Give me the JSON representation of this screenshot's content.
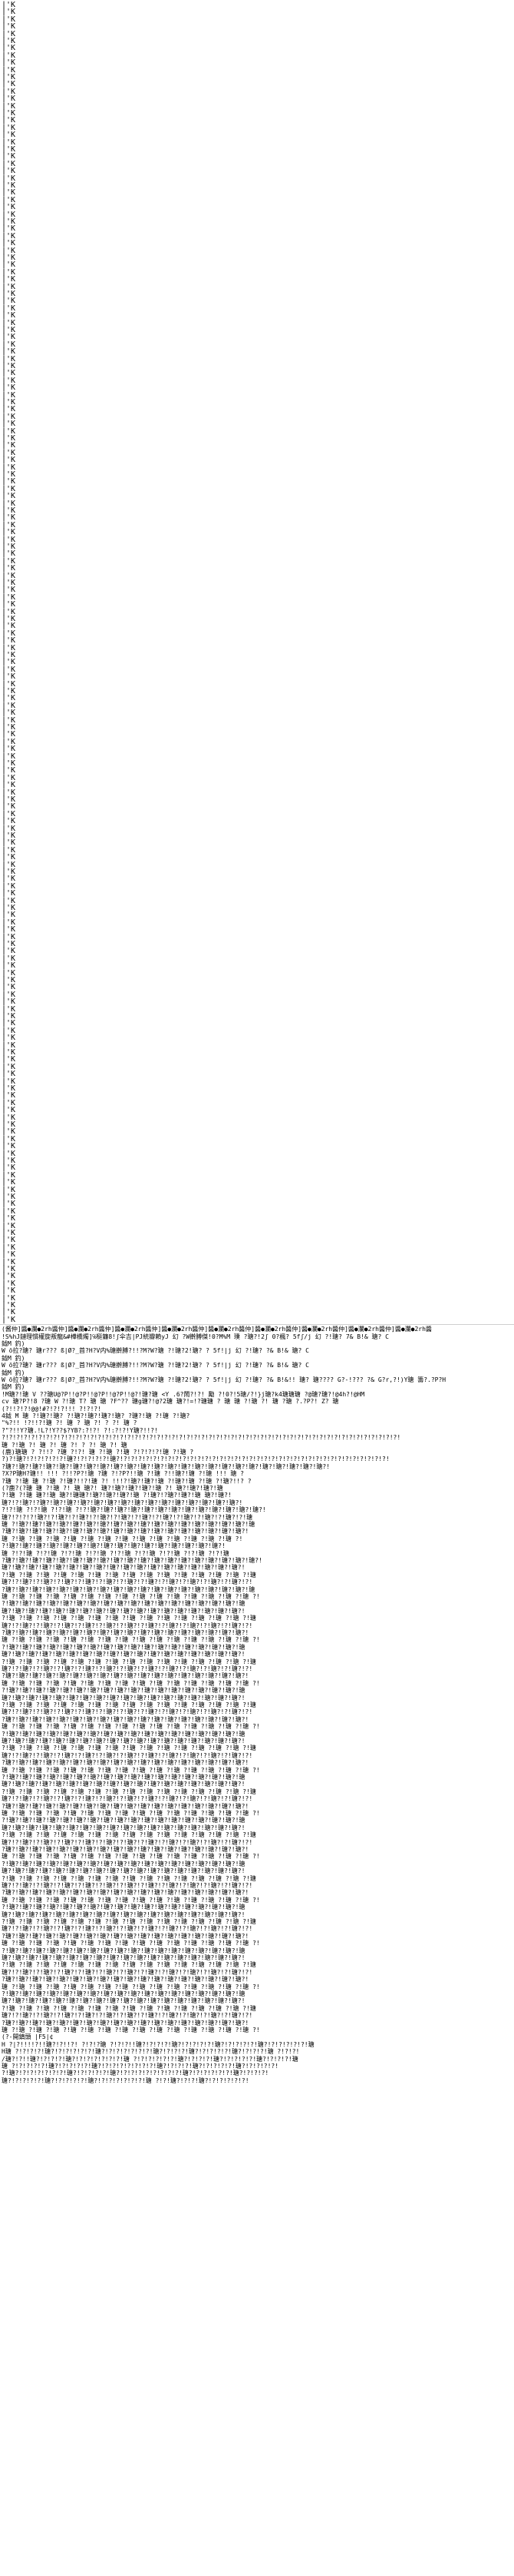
{
  "document": {
    "repeated_marker": "|'K",
    "marker_lines_count": 183,
    "blocks": [
      {
        "text": "(酱仲]醬●瀾●2rh醬仲]醬●瀾●2rh醬仲]醬●瀾●2rh醬仲]醬●瀾●2rh醬仲]醬●瀾●2rh醬仲]醬●瀾●2rh醬仲]醬●瀾●2rh醬仲]醬●瀾●2rh醬仲]醬●瀾●2rh醬"
      },
      {
        "text": "!S%hJ鏈理慣權旋叛龍&#樺橋燭]℅梃鐮8!ʃ伞吉|PJ統瓣賴yJ 幻 ?W擀膊傑!0?M%M 璞 ?瑭?!2ʃ 0?楓? 5fʃ/j 幻 ?!瑭? 7&  B!& 瑭? C"
      },
      {
        "text": "鉞M  釣)"
      },
      {
        "text": "W  ö拉?瑭?  瑭r???  ß|Ø?_首?H?V内%瑭擀膊?!!?M?W?瑭 ?!瑭?2!瑭? ? 5f!|j 幻 ?!瑭?  ?&  B!& 瑭? C"
      },
      {
        "text": "鉞M  釣)"
      },
      {
        "text": "W  ö拉?瑭?  瑭r???  ß|Ø?_首?H?V内%瑭擀膊?!!?M?W?瑭 ?!瑭?2!瑭? ? 5f!|j 幻 ?!瑭?  ?&  B!& 瑭? C"
      },
      {
        "text": "鉞M  釣)"
      },
      {
        "text": "W  ö拉?瑭?  瑭r???  ß|Ø?_首?H?V内%瑭擀膊?!!?M?W?瑭 ?!瑭?2!瑭? ? 5f!|j 幻 ?!瑭?  ?&  B!&!!  瑭? 瑭????  G?-!???  ?&   G?r,?!)Y瑭  籌?.?P?H"
      },
      {
        "text": "鉞M  釣)"
      },
      {
        "text": "!M瑭?!瑭 V  ??瑭U@?P!!@?P!!@?P!!@?P!!@?!瑭?瑭 <Y    .6?鬧?!?! 勵 ?!0?!5瑭/?!}j瑭?k4瑭瑭瑭 ?@瑭?瑭?!@4h?!@HM"
      },
      {
        "text": "cv 瑭?P?!8 ?瑭 W ?!瑭  T? 瑭 瑭  ?F^??  瑭g瑭?!@?2瑭 瑭?!=!?瑭瑭 ? 瑭 瑭 ?!瑭 ?! 瑭 ?瑭 ?.?P?!  Z? 瑭"
      },
      {
        "text": "(?!!?!?!@@!#?!?!?!!! ?!?!?!"
      },
      {
        "text": "4鉞 M 瑭 ?!瑭?!瑭? ?!瑭?!瑭?!瑭?!瑭? ?瑭?!瑭 ?!瑭 ?!瑭?"
      },
      {
        "text": "\"%?!! !?!!?!瑭 ?!  瑭 ?  瑭 ?!  ?  ?!  瑭 ?"
      },
      {
        "text": "?\"?!!Y?瑭.!L?!Y??$?YB?:?!?! ?!:?!?!Y瑭?!!?!"
      },
      {
        "text": "?!?!?!?!?!?!?!?!?!?!?!?!?!?!?!?!?!?!?!?!?!?!?!?!?!?!?!?!?!?!?!?!?!?!?!?!?!?!?!?!?!?!?!?!?!?!?!?!?!?!?!?!?!?!"
      },
      {
        "text": "瑭 ?!瑭 ?!  瑭 ?! 瑭 ?!  ?  ?!  瑭 ?!  瑭"
      },
      {
        "text": "(鹿)瑭瑭 ?  ?!!?  ?瑭 ?!?!  瑭 ?!瑭 ?!瑭 ?!?!?!?!瑭 ?!瑭 ?"
      },
      {
        "text": "?)?!瑭?!?!?!?!?!?!瑭?!?!?!?!?!瑭?!?!?!?!?!?!?!?!?!?!?!?!?!?!?!?!?!?!?!?!?!?!?!?!?!?!?!?!?!?!?!?!?!?!?!?!?!"
      },
      {
        "text": "?瑭?!瑭?!瑭?!瑭?!瑭?!瑭?!瑭?!瑭?!瑭?!瑭?!瑭?!瑭?!瑭?!瑭?!瑭?!瑭?!瑭?!瑭?!瑭?!瑭?!瑭?!瑭?!瑭?!瑭?!"
      },
      {
        "text": "?X?P瑭H?瑭!! !!!  ?!!?P?!瑭 ?瑭 ?!?P?!!瑭 ?!瑭 ?!!瑭?!瑭 ?!瑭 !!!  瑭 ?"
      },
      {
        "text": "?瑭 ?!瑭 瑭  ?!瑭 ?!瑭?!!?!瑭 ?!  !!!?!瑭?!瑭?!瑭 ?!瑭?!瑭 ?!瑭 ?!瑭?!!? ?"
      },
      {
        "text": "(?鹿?(?瑭 瑭 ?!瑭 ?!  瑭 瑭?! 瑭?!瑭?!瑭?!瑭?!瑭 ?!  瑭?!瑭?!瑭?!瑭"
      },
      {
        "text": "?!瑭 ?!瑭 瑭?!瑭 瑭?!瑭瑭?!瑭?!瑭?!瑭?!瑭 ?!瑭?!?瑭?!瑭?!瑭 瑭?!瑭?!"
      },
      {
        "text": "瑭?!?!瑭?!?瑭?!瑭?!瑭?!瑭?!瑭?!瑭?!瑭?!瑭?!瑭?!瑭?!瑭?!瑭?!瑭?!瑭?!瑭?!"
      },
      {
        "text": "?!?!瑭 ?!?!瑭 ?!?!瑭 ?!?!瑭?!瑭?!瑭?!瑭?!瑭?!瑭?!瑭?!瑭?!瑭?!瑭?!瑭?!瑭?!瑭?!"
      },
      {
        "text": "瑭?!?!?!?!瑭?!?!瑭?!?!瑭?!?!瑭?!?!瑭?!?!瑭?!?!瑭?!?!瑭?!?!瑭?!?!瑭?!?!瑭"
      },
      {
        "text": "瑭 ?!瑭?!瑭?!瑭?!瑭?!瑭?!瑭?!瑭?!瑭?!瑭?!瑭?!瑭?!瑭?!瑭?!瑭?!瑭?!瑭?!瑭?!瑭"
      },
      {
        "text": "?瑭?!瑭?!瑭?!瑭?!瑭?!瑭?!瑭?!瑭?!瑭?!瑭?!瑭?!瑭?!瑭?!瑭?!瑭?!瑭?!瑭?!瑭?!"
      },
      {
        "text": "瑭 ?!瑭 ?!瑭 ?!瑭 ?!瑭 ?!瑭 ?!瑭 ?!瑭 ?!瑭 ?!瑭 ?!瑭 ?!瑭 ?!瑭 ?!瑭 ?!"
      },
      {
        "text": "?!瑭?!瑭?!瑭?!瑭?!瑭?!瑭?!瑭?!瑭?!瑭?!瑭?!瑭?!瑭?!瑭?!瑭?!瑭?!瑭?!"
      },
      {
        "text": "瑭 ?!?!瑭 ?!?!瑭 ?!?!瑭 ?!?!瑭 ?!?!瑭 ?!?!瑭 ?!?!瑭 ?!?!瑭 ?!?!瑭"
      },
      {
        "text": "?瑭?!瑭?!瑭?!瑭?!瑭?!瑭?!瑭?!瑭?!瑭?!瑭?!瑭?!瑭?!瑭?!瑭?!瑭?!瑭?!瑭?!瑭?!瑭?!"
      },
      {
        "text": "瑭?!瑭?!瑭?!瑭?!瑭?!瑭?!瑭?!瑭?!瑭?!瑭?!瑭?!瑭?!瑭?!瑭?!瑭?!瑭?!瑭?!瑭?!"
      },
      {
        "text": "?!瑭 ?!瑭 ?!瑭 ?!瑭 ?!瑭 ?!瑭 ?!瑭 ?!瑭 ?!瑭 ?!瑭 ?!瑭 ?!瑭 ?!瑭 ?!瑭 ?!瑭"
      },
      {
        "text": "瑭?!?!瑭?!?!瑭?!?!瑭?!?!瑭?!?!瑭?!?!瑭?!?!瑭?!?!瑭?!?!瑭?!?!瑭?!?!瑭?!?!"
      },
      {
        "text": "?瑭?!瑭?!瑭?!瑭?!瑭?!瑭?!瑭?!瑭?!瑭?!瑭?!瑭?!瑭?!瑭?!瑭?!瑭?!瑭?!瑭?!瑭?!瑭"
      },
      {
        "text": "瑭 ?!瑭 ?!瑭 ?!瑭 ?!瑭 ?!瑭 ?!瑭 ?!瑭 ?!瑭 ?!瑭 ?!瑭 ?!瑭 ?!瑭 ?!瑭 ?!瑭 ?!"
      },
      {
        "text": "?!瑭?!瑭?!瑭?!瑭?!瑭?!瑭?!瑭?!瑭?!瑭?!瑭?!瑭?!瑭?!瑭?!瑭?!瑭?!瑭?!瑭?!瑭"
      },
      {
        "text": "瑭?!瑭?!瑭?!瑭?!瑭?!瑭?!瑭?!瑭?!瑭?!瑭?!瑭?!瑭?!瑭?!瑭?!瑭?!瑭?!瑭?!瑭?!"
      },
      {
        "text": "?!瑭 ?!瑭 ?!瑭 ?!瑭 ?!瑭 ?!瑭 ?!瑭 ?!瑭 ?!瑭 ?!瑭 ?!瑭 ?!瑭 ?!瑭 ?!瑭 ?!瑭"
      },
      {
        "text": "瑭?!?!瑭?!?!瑭?!?!瑭?!?!瑭?!?!瑭?!?!瑭?!?!瑭?!?!瑭?!?!瑭?!?!瑭?!?!瑭?!?!"
      },
      {
        "text": "?瑭?!瑭?!瑭?!瑭?!瑭?!瑭?!瑭?!瑭?!瑭?!瑭?!瑭?!瑭?!瑭?!瑭?!瑭?!瑭?!瑭?!瑭?!"
      },
      {
        "text": "瑭 ?!瑭 ?!瑭 ?!瑭 ?!瑭 ?!瑭 ?!瑭 ?!瑭 ?!瑭 ?!瑭 ?!瑭 ?!瑭 ?!瑭 ?!瑭 ?!瑭 ?!"
      },
      {
        "text": "?!瑭?!瑭?!瑭?!瑭?!瑭?!瑭?!瑭?!瑭?!瑭?!瑭?!瑭?!瑭?!瑭?!瑭?!瑭?!瑭?!瑭?!瑭"
      },
      {
        "text": "瑭?!瑭?!瑭?!瑭?!瑭?!瑭?!瑭?!瑭?!瑭?!瑭?!瑭?!瑭?!瑭?!瑭?!瑭?!瑭?!瑭?!瑭?!"
      },
      {
        "text": "?!瑭 ?!瑭 ?!瑭 ?!瑭 ?!瑭 ?!瑭 ?!瑭 ?!瑭 ?!瑭 ?!瑭 ?!瑭 ?!瑭 ?!瑭 ?!瑭 ?!瑭"
      },
      {
        "text": "瑭?!?!瑭?!?!瑭?!?!瑭?!?!瑭?!?!瑭?!?!瑭?!?!瑭?!?!瑭?!?!瑭?!?!瑭?!?!瑭?!?!"
      },
      {
        "text": "?瑭?!瑭?!瑭?!瑭?!瑭?!瑭?!瑭?!瑭?!瑭?!瑭?!瑭?!瑭?!瑭?!瑭?!瑭?!瑭?!瑭?!瑭?!"
      },
      {
        "text": "瑭 ?!瑭 ?!瑭 ?!瑭 ?!瑭 ?!瑭 ?!瑭 ?!瑭 ?!瑭 ?!瑭 ?!瑭 ?!瑭 ?!瑭 ?!瑭 ?!瑭 ?!"
      },
      {
        "text": "?!瑭?!瑭?!瑭?!瑭?!瑭?!瑭?!瑭?!瑭?!瑭?!瑭?!瑭?!瑭?!瑭?!瑭?!瑭?!瑭?!瑭?!瑭"
      },
      {
        "text": "瑭?!瑭?!瑭?!瑭?!瑭?!瑭?!瑭?!瑭?!瑭?!瑭?!瑭?!瑭?!瑭?!瑭?!瑭?!瑭?!瑭?!瑭?!"
      },
      {
        "text": "?!瑭 ?!瑭 ?!瑭 ?!瑭 ?!瑭 ?!瑭 ?!瑭 ?!瑭 ?!瑭 ?!瑭 ?!瑭 ?!瑭 ?!瑭 ?!瑭 ?!瑭"
      },
      {
        "text": "瑭?!?!瑭?!?!瑭?!?!瑭?!?!瑭?!?!瑭?!?!瑭?!?!瑭?!?!瑭?!?!瑭?!?!瑭?!?!瑭?!?!"
      },
      {
        "text": "?瑭?!瑭?!瑭?!瑭?!瑭?!瑭?!瑭?!瑭?!瑭?!瑭?!瑭?!瑭?!瑭?!瑭?!瑭?!瑭?!瑭?!瑭?!"
      },
      {
        "text": "瑭 ?!瑭 ?!瑭 ?!瑭 ?!瑭 ?!瑭 ?!瑭 ?!瑭 ?!瑭 ?!瑭 ?!瑭 ?!瑭 ?!瑭 ?!瑭 ?!瑭 ?!"
      },
      {
        "text": "?!瑭?!瑭?!瑭?!瑭?!瑭?!瑭?!瑭?!瑭?!瑭?!瑭?!瑭?!瑭?!瑭?!瑭?!瑭?!瑭?!瑭?!瑭"
      },
      {
        "text": "瑭?!瑭?!瑭?!瑭?!瑭?!瑭?!瑭?!瑭?!瑭?!瑭?!瑭?!瑭?!瑭?!瑭?!瑭?!瑭?!瑭?!瑭?!"
      },
      {
        "text": "?!瑭 ?!瑭 ?!瑭 ?!瑭 ?!瑭 ?!瑭 ?!瑭 ?!瑭 ?!瑭 ?!瑭 ?!瑭 ?!瑭 ?!瑭 ?!瑭 ?!瑭"
      },
      {
        "text": "瑭?!?!瑭?!?!瑭?!?!瑭?!?!瑭?!?!瑭?!?!瑭?!?!瑭?!?!瑭?!?!瑭?!?!瑭?!?!瑭?!?!"
      },
      {
        "text": "?瑭?!瑭?!瑭?!瑭?!瑭?!瑭?!瑭?!瑭?!瑭?!瑭?!瑭?!瑭?!瑭?!瑭?!瑭?!瑭?!瑭?!瑭?!"
      },
      {
        "text": "瑭 ?!瑭 ?!瑭 ?!瑭 ?!瑭 ?!瑭 ?!瑭 ?!瑭 ?!瑭 ?!瑭 ?!瑭 ?!瑭 ?!瑭 ?!瑭 ?!瑭 ?!"
      },
      {
        "text": "?!瑭?!瑭?!瑭?!瑭?!瑭?!瑭?!瑭?!瑭?!瑭?!瑭?!瑭?!瑭?!瑭?!瑭?!瑭?!瑭?!瑭?!瑭"
      },
      {
        "text": "瑭?!瑭?!瑭?!瑭?!瑭?!瑭?!瑭?!瑭?!瑭?!瑭?!瑭?!瑭?!瑭?!瑭?!瑭?!瑭?!瑭?!瑭?!"
      },
      {
        "text": "?!瑭 ?!瑭 ?!瑭 ?!瑭 ?!瑭 ?!瑭 ?!瑭 ?!瑭 ?!瑭 ?!瑭 ?!瑭 ?!瑭 ?!瑭 ?!瑭 ?!瑭"
      },
      {
        "text": "瑭?!?!瑭?!?!瑭?!?!瑭?!?!瑭?!?!瑭?!?!瑭?!?!瑭?!?!瑭?!?!瑭?!?!瑭?!?!瑭?!?!"
      },
      {
        "text": "?瑭?!瑭?!瑭?!瑭?!瑭?!瑭?!瑭?!瑭?!瑭?!瑭?!瑭?!瑭?!瑭?!瑭?!瑭?!瑭?!瑭?!瑭?!"
      },
      {
        "text": "瑭 ?!瑭 ?!瑭 ?!瑭 ?!瑭 ?!瑭 ?!瑭 ?!瑭 ?!瑭 ?!瑭 ?!瑭 ?!瑭 ?!瑭 ?!瑭 ?!瑭 ?!"
      },
      {
        "text": "?!瑭?!瑭?!瑭?!瑭?!瑭?!瑭?!瑭?!瑭?!瑭?!瑭?!瑭?!瑭?!瑭?!瑭?!瑭?!瑭?!瑭?!瑭"
      },
      {
        "text": "瑭?!瑭?!瑭?!瑭?!瑭?!瑭?!瑭?!瑭?!瑭?!瑭?!瑭?!瑭?!瑭?!瑭?!瑭?!瑭?!瑭?!瑭?!"
      },
      {
        "text": "?!瑭 ?!瑭 ?!瑭 ?!瑭 ?!瑭 ?!瑭 ?!瑭 ?!瑭 ?!瑭 ?!瑭 ?!瑭 ?!瑭 ?!瑭 ?!瑭 ?!瑭"
      },
      {
        "text": "瑭?!?!瑭?!?!瑭?!?!瑭?!?!瑭?!?!瑭?!?!瑭?!?!瑭?!?!瑭?!?!瑭?!?!瑭?!?!瑭?!?!"
      },
      {
        "text": "?瑭?!瑭?!瑭?!瑭?!瑭?!瑭?!瑭?!瑭?!瑭?!瑭?!瑭?!瑭?!瑭?!瑭?!瑭?!瑭?!瑭?!瑭?!"
      },
      {
        "text": "瑭 ?!瑭 ?!瑭 ?!瑭 ?!瑭 ?!瑭 ?!瑭 ?!瑭 ?!瑭 ?!瑭 ?!瑭 ?!瑭 ?!瑭 ?!瑭 ?!瑭 ?!"
      },
      {
        "text": "?!瑭?!瑭?!瑭?!瑭?!瑭?!瑭?!瑭?!瑭?!瑭?!瑭?!瑭?!瑭?!瑭?!瑭?!瑭?!瑭?!瑭?!瑭"
      },
      {
        "text": "瑭?!瑭?!瑭?!瑭?!瑭?!瑭?!瑭?!瑭?!瑭?!瑭?!瑭?!瑭?!瑭?!瑭?!瑭?!瑭?!瑭?!瑭?!"
      },
      {
        "text": "?!瑭 ?!瑭 ?!瑭 ?!瑭 ?!瑭 ?!瑭 ?!瑭 ?!瑭 ?!瑭 ?!瑭 ?!瑭 ?!瑭 ?!瑭 ?!瑭 ?!瑭"
      },
      {
        "text": "瑭?!?!瑭?!?!瑭?!?!瑭?!?!瑭?!?!瑭?!?!瑭?!?!瑭?!?!瑭?!?!瑭?!?!瑭?!?!瑭?!?!"
      },
      {
        "text": "?瑭?!瑭?!瑭?!瑭?!瑭?!瑭?!瑭?!瑭?!瑭?!瑭?!瑭?!瑭?!瑭?!瑭?!瑭?!瑭?!瑭?!瑭?!"
      },
      {
        "text": "瑭 ?!瑭 ?!瑭 ?!瑭 ?!瑭 ?!瑭 ?!瑭 ?!瑭 ?!瑭 ?!瑭 ?!瑭 ?!瑭 ?!瑭 ?!瑭 ?!瑭 ?!"
      },
      {
        "text": "?!瑭?!瑭?!瑭?!瑭?!瑭?!瑭?!瑭?!瑭?!瑭?!瑭?!瑭?!瑭?!瑭?!瑭?!瑭?!瑭?!瑭?!瑭"
      },
      {
        "text": "瑭?!瑭?!瑭?!瑭?!瑭?!瑭?!瑭?!瑭?!瑭?!瑭?!瑭?!瑭?!瑭?!瑭?!瑭?!瑭?!瑭?!瑭?!"
      },
      {
        "text": "?!瑭 ?!瑭 ?!瑭 ?!瑭 ?!瑭 ?!瑭 ?!瑭 ?!瑭 ?!瑭 ?!瑭 ?!瑭 ?!瑭 ?!瑭 ?!瑭 ?!瑭"
      },
      {
        "text": "瑭?!?!瑭?!?!瑭?!?!瑭?!?!瑭?!?!瑭?!?!瑭?!?!瑭?!?!瑭?!?!瑭?!?!瑭?!?!瑭?!?!"
      },
      {
        "text": "?瑭?!瑭?!瑭?!瑭?!瑭?!瑭?!瑭?!瑭?!瑭?!瑭?!瑭?!瑭?!瑭?!瑭?!瑭?!瑭?!瑭?!瑭?!"
      },
      {
        "text": "瑭 ?!瑭 ?!瑭 ?!瑭 ?!瑭 ?!瑭 ?!瑭 ?!瑭 ?!瑭 ?!瑭 ?!瑭 ?!瑭 ?!瑭 ?!瑭 ?!瑭 ?!"
      },
      {
        "text": "?!瑭?!瑭?!瑭?!瑭?!瑭?!瑭?!瑭?!瑭?!瑭?!瑭?!瑭?!瑭?!瑭?!瑭?!瑭?!瑭?!瑭?!瑭"
      },
      {
        "text": "瑭?!瑭?!瑭?!瑭?!瑭?!瑭?!瑭?!瑭?!瑭?!瑭?!瑭?!瑭?!瑭?!瑭?!瑭?!瑭?!瑭?!瑭?!"
      },
      {
        "text": "?!瑭 ?!瑭 ?!瑭 ?!瑭 ?!瑭 ?!瑭 ?!瑭 ?!瑭 ?!瑭 ?!瑭 ?!瑭 ?!瑭 ?!瑭 ?!瑭 ?!瑭"
      },
      {
        "text": "瑭?!?!瑭?!?!瑭?!?!瑭?!?!瑭?!?!瑭?!?!瑭?!?!瑭?!?!瑭?!?!瑭?!?!瑭?!?!瑭?!?!"
      },
      {
        "text": "?瑭?!瑭?!瑭?!瑭?!瑭?!瑭?!瑭?!瑭?!瑭?!瑭?!瑭?!瑭?!瑭?!瑭?!瑭?!瑭?!瑭?!瑭?!"
      },
      {
        "text": "瑭 ?!瑭 ?!瑭 ?!瑭 ?!瑭 ?!瑭 ?!瑭 ?!瑭 ?!瑭 ?!瑭 ?!瑭 ?!瑭 ?!瑭 ?!瑭 ?!瑭 ?!"
      },
      {
        "text": "?!瑭?!瑭?!瑭?!瑭?!瑭?!瑭?!瑭?!瑭?!瑭?!瑭?!瑭?!瑭?!瑭?!瑭?!瑭?!瑭?!瑭?!瑭"
      },
      {
        "text": "瑭?!瑭?!瑭?!瑭?!瑭?!瑭?!瑭?!瑭?!瑭?!瑭?!瑭?!瑭?!瑭?!瑭?!瑭?!瑭?!瑭?!瑭?!"
      },
      {
        "text": "?!瑭 ?!瑭 ?!瑭 ?!瑭 ?!瑭 ?!瑭 ?!瑭 ?!瑭 ?!瑭 ?!瑭 ?!瑭 ?!瑭 ?!瑭 ?!瑭 ?!瑭"
      },
      {
        "text": "瑭?!?!瑭?!?!瑭?!?!瑭?!?!瑭?!?!瑭?!?!瑭?!?!瑭?!?!瑭?!?!瑭?!?!瑭?!?!瑭?!?!"
      },
      {
        "text": "?瑭?!瑭?!瑭?!瑭?!瑭?!瑭?!瑭?!瑭?!瑭?!瑭?!瑭?!瑭?!瑭?!瑭?!瑭?!瑭?!瑭?!瑭?!"
      },
      {
        "text": "瑭 ?!瑭 ?!瑭 ?!瑭 ?!瑭 ?!瑭 ?!瑭 ?!瑭 ?!瑭 ?!瑭 ?!瑭 ?!瑭 ?!瑭 ?!瑭 ?!瑭 ?!"
      },
      {
        "text": "(?-開鎮頭   |F5|¢"
      },
      {
        "text": "H ?|?!!!!?!!瑭?!?!!?!  ?!?!?瑭 ?!?!?!!瑭?!?!?!?!瑭?!?!?!?!?!瑭?!?!?!?!?!瑭?!?!?!?!?!?!瑭"
      },
      {
        "text": "H瑭 ?!?!?!?!瑭?!?!?!?!?!?!瑭?!?!?!?!?!?!?!瑭?!?!?!?!瑭?!?!?!?!?!瑭?!?!?!?!瑭 ?!?!?!"
      },
      {
        "text": "/瑭?!?!!瑭?!?!?!?!瑭?!?!?!?!?!?!?!瑭 ?!?!?!?!?!?!瑭?!?!?!?!瑭?!?!?!?!?!瑭?!?!?!?!瑭"
      },
      {
        "text": "瑭 ?!?!?!?!?!瑭?!?!?!?!?!瑭?!?!?!?!?!?!?!?!瑭?!?!?!?!瑭?!?!?!?!?!瑭?!?!?!?!?!"
      },
      {
        "text": "?!瑭?!?!?!?!?!?!?!瑭?!?!?!?!?!瑭?!?!?!?!?!?!?!?!?!瑭?!?!?!?!?!?!瑭?!?!?!?!"
      },
      {
        "text": "瑭?!?!?!?!?!瑭?!?!?!?!?!瑭?!?!?!?!?!?!?!瑭 ?!?!瑭?!?!?!瑭?!?!?!?!?!?!"
      }
    ]
  }
}
